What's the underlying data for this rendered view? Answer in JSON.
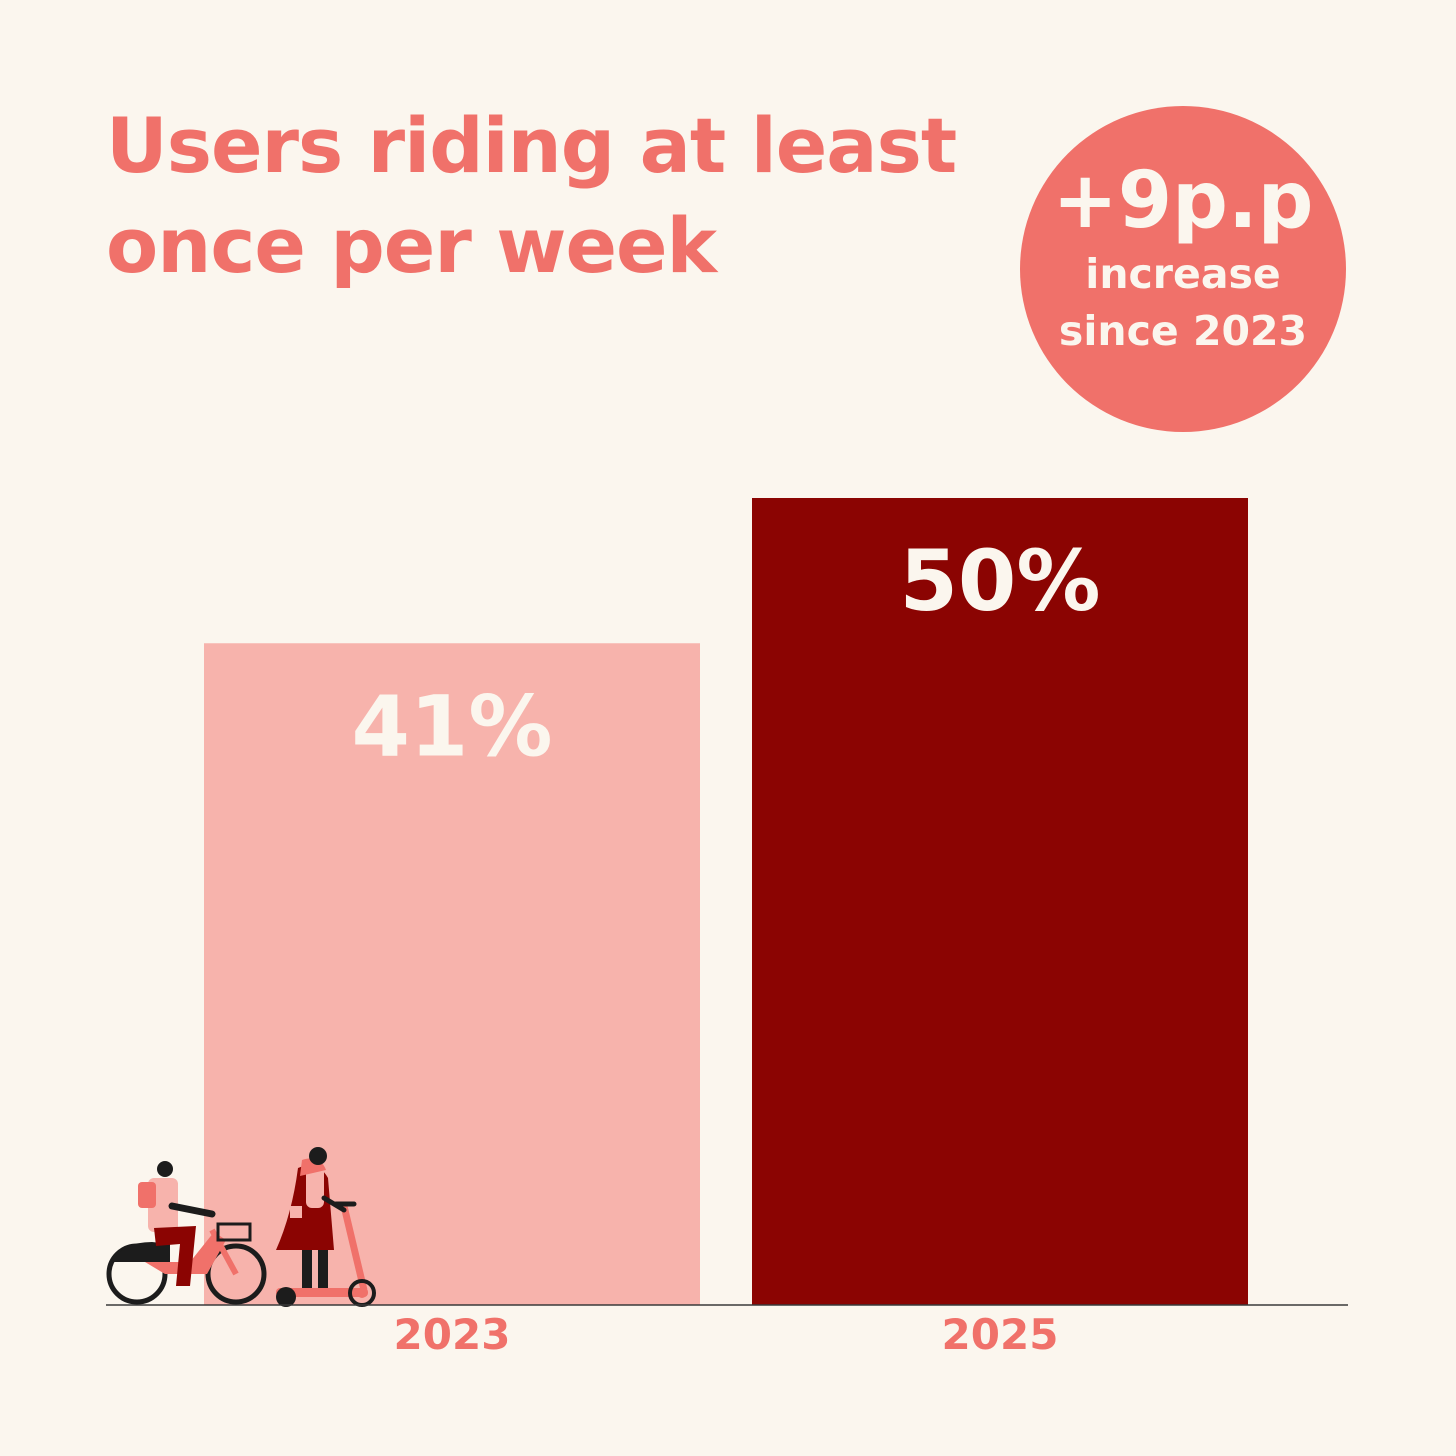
{
  "title": "Users riding at least once per week",
  "badge": {
    "value": "+9p.p",
    "text": "increase\nsince 2023"
  },
  "colors": {
    "background": "#fbf6ee",
    "accent": "#f0716a",
    "bar_2023": "#f7b3ac",
    "bar_2025": "#8b0402"
  },
  "illustration": {
    "icons": [
      "cyclist-icon",
      "scooter-rider-icon"
    ]
  },
  "chart_data": {
    "type": "bar",
    "categories": [
      "2023",
      "2025"
    ],
    "values": [
      41,
      50
    ],
    "value_labels": [
      "41%",
      "50%"
    ],
    "bar_colors": [
      "#f7b3ac",
      "#8b0402"
    ],
    "ylim": [
      0,
      60
    ],
    "grid": false,
    "title": "Users riding at least once per week",
    "xlabel": "",
    "ylabel": ""
  }
}
